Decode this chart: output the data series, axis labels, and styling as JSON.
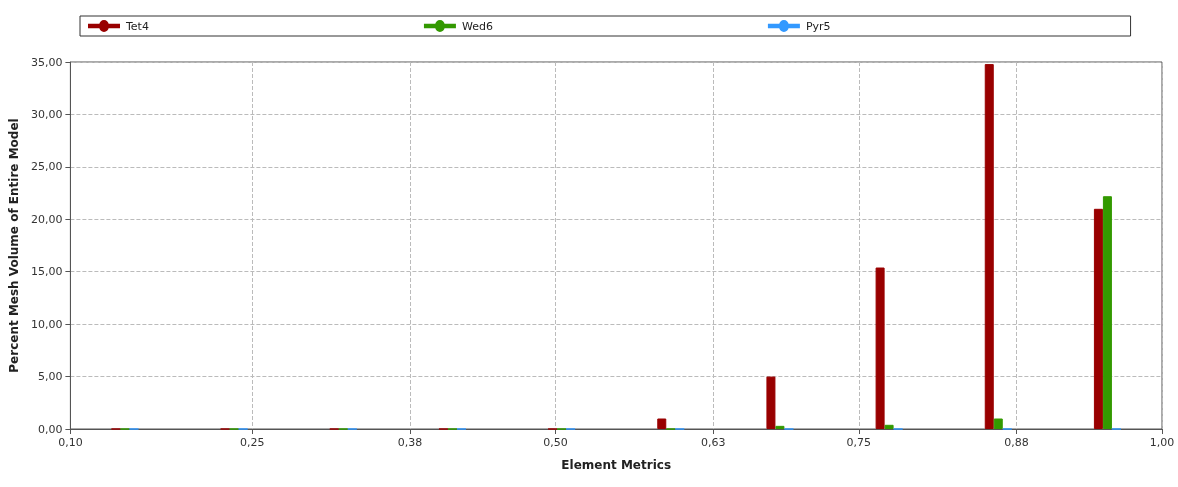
{
  "chart_data": {
    "type": "bar",
    "xlabel": "Element Metrics",
    "ylabel": "Percent Mesh Volume of Entire Model",
    "x": [
      0.145,
      0.235,
      0.325,
      0.415,
      0.505,
      0.595,
      0.685,
      0.775,
      0.865,
      0.955
    ],
    "series": [
      {
        "name": "Tet4",
        "color": "#990000",
        "values": [
          0,
          0,
          0,
          0,
          0,
          1.0,
          5.0,
          15.4,
          34.8,
          21.0
        ]
      },
      {
        "name": "Wed6",
        "color": "#339900",
        "values": [
          0,
          0,
          0,
          0,
          0,
          0,
          0.3,
          0.4,
          1.0,
          22.2
        ]
      },
      {
        "name": "Pyr5",
        "color": "#3399ff",
        "values": [
          0,
          0,
          0,
          0,
          0,
          0,
          0,
          0,
          0,
          0
        ]
      }
    ],
    "xlim": [
      0.1,
      1.0
    ],
    "xticks": [
      {
        "value": 0.1,
        "label": "0,10"
      },
      {
        "value": 0.25,
        "label": "0,25"
      },
      {
        "value": 0.38,
        "label": "0,38"
      },
      {
        "value": 0.5,
        "label": "0,50"
      },
      {
        "value": 0.63,
        "label": "0,63"
      },
      {
        "value": 0.75,
        "label": "0,75"
      },
      {
        "value": 0.88,
        "label": "0,88"
      },
      {
        "value": 1.0,
        "label": "1,00"
      }
    ],
    "ylim": [
      0,
      35
    ],
    "yticks": [
      {
        "value": 0,
        "label": "0,00"
      },
      {
        "value": 5,
        "label": "5,00"
      },
      {
        "value": 10,
        "label": "10,00"
      },
      {
        "value": 15,
        "label": "15,00"
      },
      {
        "value": 20,
        "label": "20,00"
      },
      {
        "value": 25,
        "label": "25,00"
      },
      {
        "value": 30,
        "label": "30,00"
      },
      {
        "value": 35,
        "label": "35,00"
      }
    ],
    "grid": true,
    "legend": "top"
  }
}
